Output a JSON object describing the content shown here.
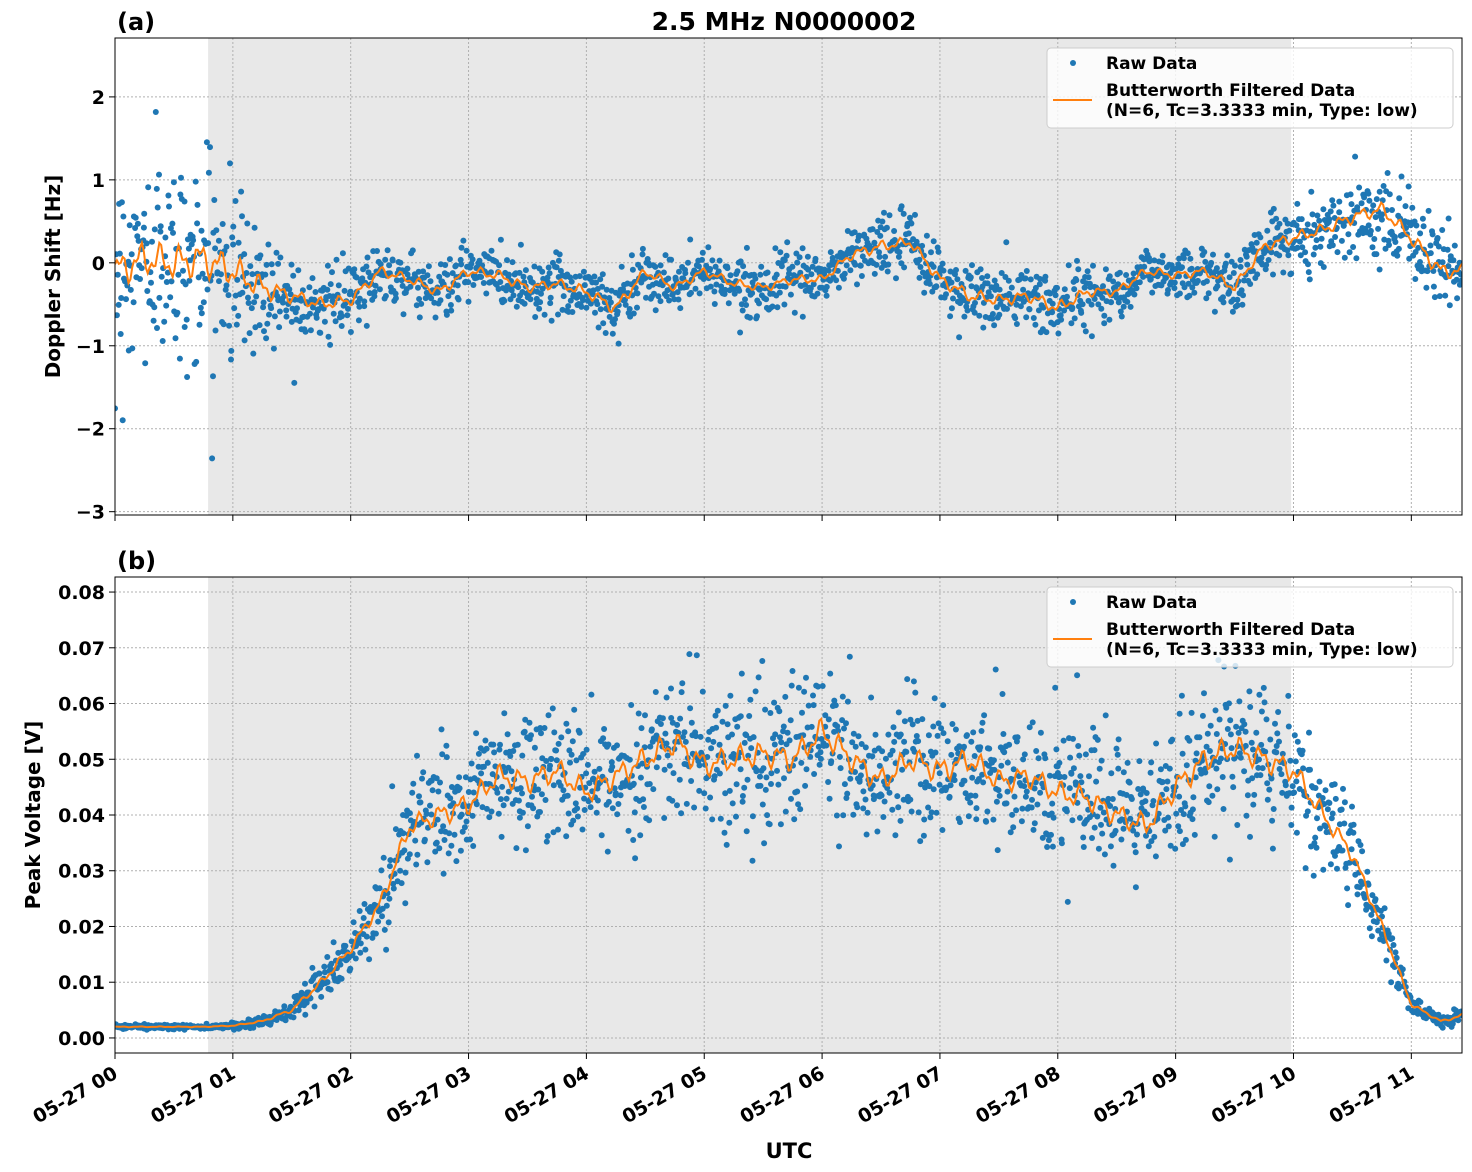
{
  "chart_data": {
    "title": "2.5 MHz N0000002",
    "xlabel": "UTC",
    "x_ticks": [
      "05-27 00",
      "05-27 01",
      "05-27 02",
      "05-27 03",
      "05-27 04",
      "05-27 05",
      "05-27 06",
      "05-27 07",
      "05-27 08",
      "05-27 09",
      "05-27 10",
      "05-27 11"
    ],
    "x_unit": "hours since 05-27 00 UTC",
    "xlim": [
      0,
      11.43
    ],
    "shaded_interval": [
      0.79,
      9.98
    ],
    "shade_color": "#e8e8e8",
    "grid": true,
    "colors": {
      "raw": "#1f77b4",
      "filtered": "#ff7f0e"
    },
    "legend": {
      "placement": "top-right",
      "entries": [
        "Raw Data",
        "Butterworth Filtered Data",
        "(N=6, Tc=3.3333 min, Type: low)"
      ]
    },
    "filtered_times": [
      0,
      0.25,
      0.5,
      0.75,
      1,
      1.25,
      1.5,
      1.75,
      2,
      2.25,
      2.5,
      2.75,
      3,
      3.25,
      3.5,
      3.75,
      4,
      4.25,
      4.5,
      4.75,
      5,
      5.25,
      5.5,
      5.75,
      6,
      6.25,
      6.5,
      6.75,
      7,
      7.25,
      7.5,
      7.75,
      8,
      8.25,
      8.5,
      8.75,
      9,
      9.25,
      9.5,
      9.75,
      10,
      10.25,
      10.5,
      10.75,
      11,
      11.25,
      11.43
    ],
    "panels": [
      {
        "label": "(a)",
        "type": "scatter+line",
        "ylabel": "Doppler Shift [Hz]",
        "ylim": [
          -3.04,
          2.71
        ],
        "y_ticks": [
          -3,
          -2,
          -1,
          0,
          1,
          2
        ],
        "y_tick_labels": [
          "−3",
          "−2",
          "−1",
          "0",
          "1",
          "2"
        ],
        "filtered": [
          -0.1,
          0.05,
          0.0,
          0.05,
          -0.1,
          -0.3,
          -0.4,
          -0.5,
          -0.45,
          -0.1,
          -0.2,
          -0.35,
          -0.1,
          -0.15,
          -0.3,
          -0.25,
          -0.35,
          -0.55,
          -0.1,
          -0.3,
          -0.1,
          -0.25,
          -0.3,
          -0.2,
          -0.2,
          0.1,
          0.2,
          0.25,
          -0.2,
          -0.4,
          -0.45,
          -0.4,
          -0.55,
          -0.35,
          -0.35,
          -0.1,
          -0.15,
          -0.1,
          -0.3,
          0.2,
          0.3,
          0.4,
          0.55,
          0.65,
          0.3,
          -0.1,
          -0.1
        ],
        "raw_spread": [
          1.2,
          1.2,
          1.2,
          1.2,
          1.1,
          0.8,
          0.5,
          0.45,
          0.4,
          0.35,
          0.35,
          0.35,
          0.35,
          0.35,
          0.35,
          0.35,
          0.4,
          0.45,
          0.35,
          0.3,
          0.3,
          0.3,
          0.3,
          0.3,
          0.3,
          0.35,
          0.4,
          0.35,
          0.4,
          0.45,
          0.4,
          0.4,
          0.45,
          0.35,
          0.3,
          0.3,
          0.3,
          0.3,
          0.35,
          0.35,
          0.4,
          0.4,
          0.45,
          0.45,
          0.5,
          0.55,
          0.5
        ]
      },
      {
        "label": "(b)",
        "type": "scatter+line",
        "ylabel": "Peak Voltage [V]",
        "ylim": [
          -0.0027,
          0.0827
        ],
        "y_ticks": [
          0,
          0.01,
          0.02,
          0.03,
          0.04,
          0.05,
          0.06,
          0.07,
          0.08
        ],
        "y_tick_labels": [
          "0.00",
          "0.01",
          "0.02",
          "0.03",
          "0.04",
          "0.05",
          "0.06",
          "0.07",
          "0.08"
        ],
        "filtered": [
          0.002,
          0.002,
          0.002,
          0.002,
          0.0022,
          0.003,
          0.005,
          0.01,
          0.016,
          0.024,
          0.038,
          0.04,
          0.042,
          0.047,
          0.046,
          0.048,
          0.044,
          0.047,
          0.05,
          0.053,
          0.049,
          0.05,
          0.051,
          0.05,
          0.055,
          0.05,
          0.046,
          0.05,
          0.048,
          0.05,
          0.046,
          0.047,
          0.044,
          0.043,
          0.04,
          0.038,
          0.045,
          0.05,
          0.052,
          0.05,
          0.048,
          0.04,
          0.033,
          0.02,
          0.006,
          0.003,
          0.004
        ],
        "raw_spread": [
          0.0004,
          0.0004,
          0.0004,
          0.0004,
          0.0005,
          0.001,
          0.002,
          0.004,
          0.005,
          0.007,
          0.01,
          0.011,
          0.012,
          0.012,
          0.012,
          0.012,
          0.012,
          0.012,
          0.013,
          0.013,
          0.013,
          0.013,
          0.013,
          0.013,
          0.014,
          0.013,
          0.013,
          0.013,
          0.013,
          0.013,
          0.012,
          0.012,
          0.012,
          0.012,
          0.012,
          0.012,
          0.013,
          0.013,
          0.013,
          0.013,
          0.012,
          0.01,
          0.008,
          0.005,
          0.002,
          0.001,
          0.002
        ]
      }
    ]
  }
}
